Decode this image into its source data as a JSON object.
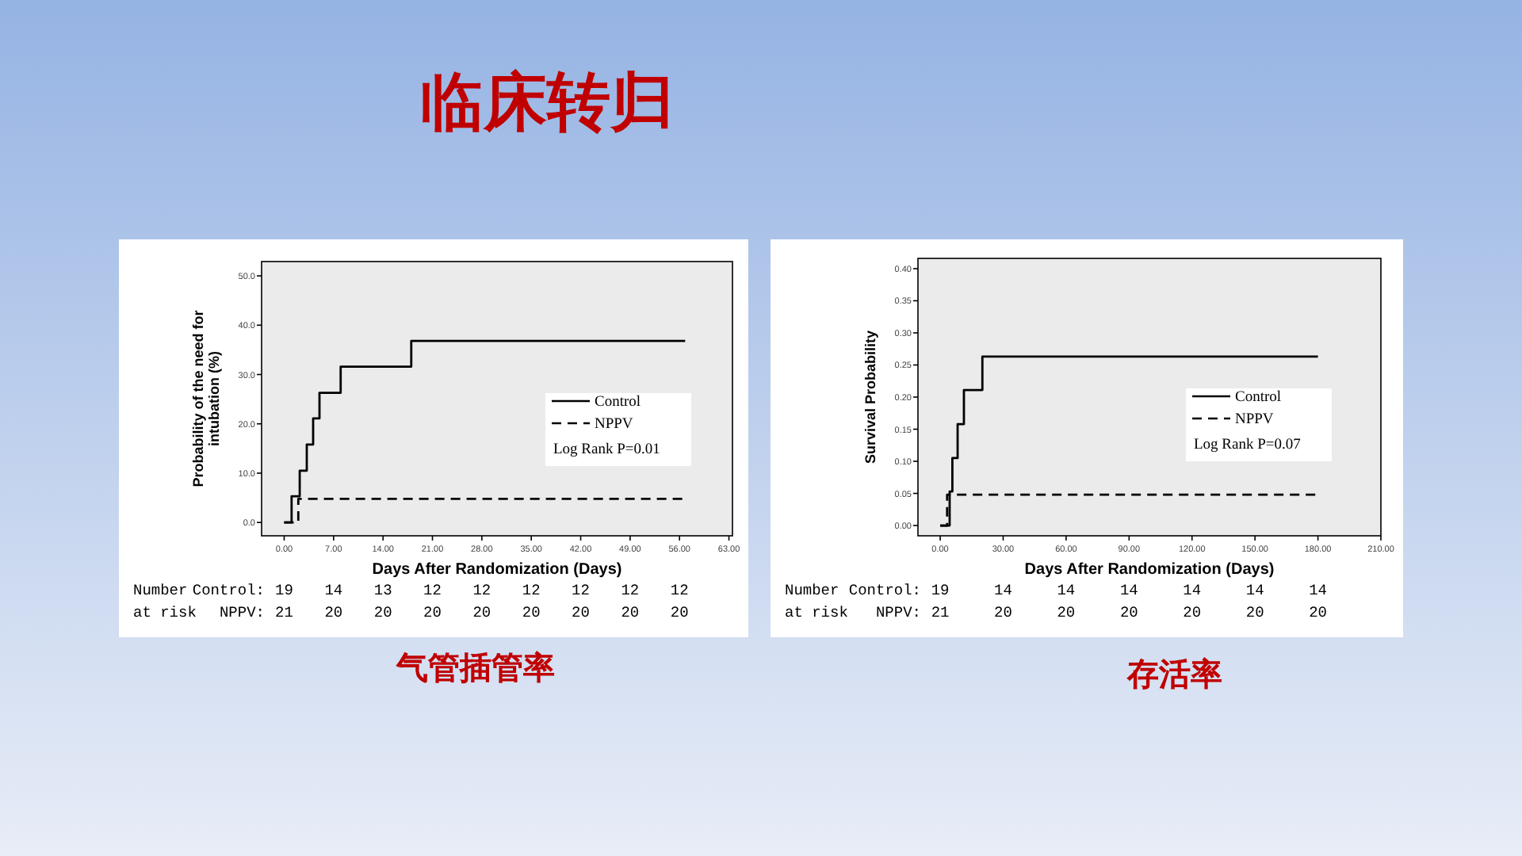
{
  "chart_data": [
    {
      "type": "step",
      "title": "气管插管率",
      "xlabel": "Days After Randomization (Days)",
      "ylabel": "Probability of the need for intubation (%)",
      "xlim": [
        -3.2,
        63.5
      ],
      "ylim": [
        -2.7,
        52.9
      ],
      "xticks": [
        {
          "value": 0,
          "label": "0.00"
        },
        {
          "value": 7,
          "label": "7.00"
        },
        {
          "value": 14,
          "label": "14.00"
        },
        {
          "value": 21,
          "label": "21.00"
        },
        {
          "value": 28,
          "label": "28.00"
        },
        {
          "value": 35,
          "label": "35.00"
        },
        {
          "value": 42,
          "label": "42.00"
        },
        {
          "value": 49,
          "label": "49.00"
        },
        {
          "value": 56,
          "label": "56.00"
        },
        {
          "value": 63,
          "label": "63.00"
        }
      ],
      "yticks": [
        {
          "value": 0,
          "label": "0.0"
        },
        {
          "value": 10,
          "label": "10.0"
        },
        {
          "value": 20,
          "label": "20.0"
        },
        {
          "value": 30,
          "label": "30.0"
        },
        {
          "value": 40,
          "label": "40.0"
        },
        {
          "value": 50,
          "label": "50.0"
        }
      ],
      "legend": "right",
      "series": [
        {
          "name": "Control",
          "color": "#000000",
          "line_style": "solid",
          "x": [
            0,
            1.05,
            2.2,
            3.2,
            4.1,
            5.0,
            8.0,
            18.0,
            56.8
          ],
          "values": [
            0,
            5.3,
            10.5,
            15.8,
            21.1,
            26.3,
            31.6,
            36.8,
            36.8
          ]
        },
        {
          "name": "NPPV",
          "color": "#000000",
          "line_style": "dashed",
          "x": [
            0,
            2.0,
            56.8
          ],
          "values": [
            0,
            4.8,
            4.8
          ]
        }
      ],
      "annotations": [
        "Log Rank P=0.01",
        "Number",
        "at risk",
        "Control:",
        "NPPV:",
        "19",
        "14",
        "13",
        "12",
        "12",
        "12",
        "12",
        "12",
        "12",
        "21",
        "20",
        "20",
        "20",
        "20",
        "20",
        "20",
        "20",
        "20",
        "临床转归"
      ]
    },
    {
      "type": "step",
      "title": "存活率",
      "xlabel": "Days After Randomization (Days)",
      "ylabel": "Survival Probability",
      "xlim": [
        -10.6,
        210
      ],
      "ylim": [
        -0.016,
        0.416
      ],
      "xticks": [
        {
          "value": 0,
          "label": "0.00"
        },
        {
          "value": 30,
          "label": "30.00"
        },
        {
          "value": 60,
          "label": "60.00"
        },
        {
          "value": 90,
          "label": "90.00"
        },
        {
          "value": 120,
          "label": "120.00"
        },
        {
          "value": 150,
          "label": "150.00"
        },
        {
          "value": 180,
          "label": "180.00"
        },
        {
          "value": 210,
          "label": "210.00"
        }
      ],
      "yticks": [
        {
          "value": 0,
          "label": "0.00"
        },
        {
          "value": 0.05,
          "label": "0.05"
        },
        {
          "value": 0.1,
          "label": "0.10"
        },
        {
          "value": 0.15,
          "label": "0.15"
        },
        {
          "value": 0.2,
          "label": "0.20"
        },
        {
          "value": 0.25,
          "label": "0.25"
        },
        {
          "value": 0.3,
          "label": "0.30"
        },
        {
          "value": 0.35,
          "label": "0.35"
        },
        {
          "value": 0.4,
          "label": "0.40"
        }
      ],
      "legend": "right",
      "series": [
        {
          "name": "Control",
          "color": "#000000",
          "line_style": "solid",
          "x": [
            0,
            4.5,
            5.8,
            8.3,
            11.3,
            20.1,
            180
          ],
          "values": [
            0,
            0.053,
            0.105,
            0.158,
            0.211,
            0.263,
            0.263
          ]
        },
        {
          "name": "NPPV",
          "color": "#000000",
          "line_style": "dashed",
          "x": [
            0,
            3.3,
            180
          ],
          "values": [
            0,
            0.048,
            0.048
          ]
        }
      ],
      "annotations": [
        "Log Rank P=0.07",
        "Number",
        "at risk",
        "Control:",
        "NPPV:",
        "19",
        "14",
        "14",
        "14",
        "14",
        "14",
        "14",
        "21",
        "20",
        "20",
        "20",
        "20",
        "20",
        "20"
      ]
    }
  ]
}
